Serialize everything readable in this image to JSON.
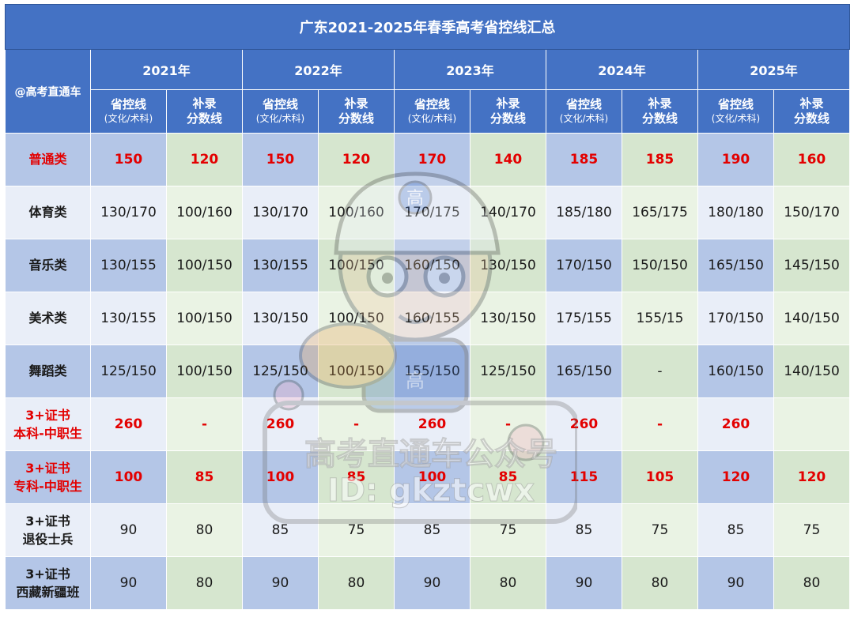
{
  "title": "广东2021-2025年春季高考省控线汇总",
  "brand_label": "@高考直通车",
  "years": [
    "2021年",
    "2022年",
    "2023年",
    "2024年",
    "2025年"
  ],
  "sub_headers": {
    "sheng_line1": "省控线",
    "sheng_line2": "(文化/术科)",
    "bu_line1": "补录",
    "bu_line2": "分数线"
  },
  "rows": [
    {
      "label_lines": [
        "普通类"
      ],
      "label_red": true,
      "values_red": true,
      "values": [
        "150",
        "120",
        "150",
        "120",
        "170",
        "140",
        "185",
        "185",
        "190",
        "160"
      ]
    },
    {
      "label_lines": [
        "体育类"
      ],
      "label_red": false,
      "values_red": false,
      "values": [
        "130/170",
        "100/160",
        "130/170",
        "100/160",
        "170/175",
        "140/170",
        "185/180",
        "165/175",
        "180/180",
        "150/170"
      ]
    },
    {
      "label_lines": [
        "音乐类"
      ],
      "label_red": false,
      "values_red": false,
      "values": [
        "130/155",
        "100/150",
        "130/155",
        "100/150",
        "160/150",
        "130/150",
        "170/150",
        "150/150",
        "165/150",
        "145/150"
      ]
    },
    {
      "label_lines": [
        "美术类"
      ],
      "label_red": false,
      "values_red": false,
      "values": [
        "130/155",
        "100/150",
        "130/150",
        "100/150",
        "160/155",
        "130/150",
        "175/155",
        "155/15",
        "170/150",
        "140/150"
      ]
    },
    {
      "label_lines": [
        "舞蹈类"
      ],
      "label_red": false,
      "values_red": false,
      "values": [
        "125/150",
        "100/150",
        "125/150",
        "100/150",
        "155/150",
        "125/150",
        "165/150",
        "-",
        "160/150",
        "140/150"
      ]
    },
    {
      "label_lines": [
        "3+证书",
        "本科-中职生"
      ],
      "label_red": true,
      "values_red": true,
      "values": [
        "260",
        "-",
        "260",
        "-",
        "260",
        "-",
        "260",
        "-",
        "260",
        ""
      ]
    },
    {
      "label_lines": [
        "3+证书",
        "专科-中职生"
      ],
      "label_red": true,
      "values_red": true,
      "values": [
        "100",
        "85",
        "100",
        "85",
        "100",
        "85",
        "115",
        "105",
        "120",
        "120"
      ]
    },
    {
      "label_lines": [
        "3+证书",
        "退役士兵"
      ],
      "label_red": false,
      "values_red": false,
      "values": [
        "90",
        "80",
        "85",
        "75",
        "85",
        "75",
        "85",
        "75",
        "85",
        "75"
      ]
    },
    {
      "label_lines": [
        "3+证书",
        "西藏新疆班"
      ],
      "label_red": false,
      "values_red": false,
      "values": [
        "90",
        "80",
        "90",
        "80",
        "90",
        "80",
        "90",
        "80",
        "90",
        "80"
      ]
    }
  ],
  "watermark": {
    "text_line1": "高考直通车公众号",
    "text_line2": "ID: gkztcwx",
    "mascot_badge": "高",
    "mascot_shirt": "高"
  },
  "colors": {
    "header_blue": "#4472c4",
    "light_blue": "#b4c6e7",
    "pale_blue": "#e9eef8",
    "light_green": "#d6e6cf",
    "pale_green": "#eaf3e4",
    "highlight_red": "#e30000"
  }
}
